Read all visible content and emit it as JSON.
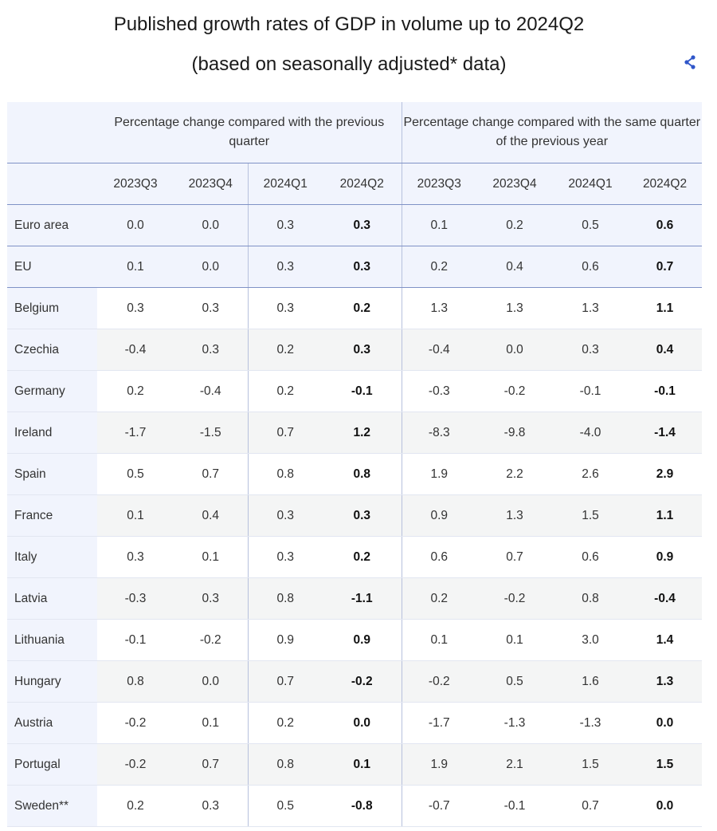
{
  "title_line1": "Published growth rates of GDP in volume up to 2024Q2",
  "title_line2": "(based on seasonally adjusted* data)",
  "share_icon": "share-icon",
  "colors": {
    "accent": "#2f56c9",
    "header_bg": "#f1f4fd",
    "alt_row_bg": "#f4f5f5",
    "rule": "#7f92c6"
  },
  "table": {
    "group_headers": [
      "Percentage change compared with the previous quarter",
      "Percentage change compared with the same quarter of the previous year"
    ],
    "columns": [
      "2023Q3",
      "2023Q4",
      "2024Q1",
      "2024Q2",
      "2023Q3",
      "2023Q4",
      "2024Q1",
      "2024Q2"
    ],
    "rows": [
      {
        "country": "Euro area",
        "values": [
          "0.0",
          "0.0",
          "0.3",
          "0.3",
          "0.1",
          "0.2",
          "0.5",
          "0.6"
        ]
      },
      {
        "country": "EU",
        "values": [
          "0.1",
          "0.0",
          "0.3",
          "0.3",
          "0.2",
          "0.4",
          "0.6",
          "0.7"
        ]
      },
      {
        "country": "Belgium",
        "values": [
          "0.3",
          "0.3",
          "0.3",
          "0.2",
          "1.3",
          "1.3",
          "1.3",
          "1.1"
        ]
      },
      {
        "country": "Czechia",
        "values": [
          "-0.4",
          "0.3",
          "0.2",
          "0.3",
          "-0.4",
          "0.0",
          "0.3",
          "0.4"
        ]
      },
      {
        "country": "Germany",
        "values": [
          "0.2",
          "-0.4",
          "0.2",
          "-0.1",
          "-0.3",
          "-0.2",
          "-0.1",
          "-0.1"
        ]
      },
      {
        "country": "Ireland",
        "values": [
          "-1.7",
          "-1.5",
          "0.7",
          "1.2",
          "-8.3",
          "-9.8",
          "-4.0",
          "-1.4"
        ]
      },
      {
        "country": "Spain",
        "values": [
          "0.5",
          "0.7",
          "0.8",
          "0.8",
          "1.9",
          "2.2",
          "2.6",
          "2.9"
        ]
      },
      {
        "country": "France",
        "values": [
          "0.1",
          "0.4",
          "0.3",
          "0.3",
          "0.9",
          "1.3",
          "1.5",
          "1.1"
        ]
      },
      {
        "country": "Italy",
        "values": [
          "0.3",
          "0.1",
          "0.3",
          "0.2",
          "0.6",
          "0.7",
          "0.6",
          "0.9"
        ]
      },
      {
        "country": "Latvia",
        "values": [
          "-0.3",
          "0.3",
          "0.8",
          "-1.1",
          "0.2",
          "-0.2",
          "0.8",
          "-0.4"
        ]
      },
      {
        "country": "Lithuania",
        "values": [
          "-0.1",
          "-0.2",
          "0.9",
          "0.9",
          "0.1",
          "0.1",
          "3.0",
          "1.4"
        ]
      },
      {
        "country": "Hungary",
        "values": [
          "0.8",
          "0.0",
          "0.7",
          "-0.2",
          "-0.2",
          "0.5",
          "1.6",
          "1.3"
        ]
      },
      {
        "country": "Austria",
        "values": [
          "-0.2",
          "0.1",
          "0.2",
          "0.0",
          "-1.7",
          "-1.3",
          "-1.3",
          "0.0"
        ]
      },
      {
        "country": "Portugal",
        "values": [
          "-0.2",
          "0.7",
          "0.8",
          "0.1",
          "1.9",
          "2.1",
          "1.5",
          "1.5"
        ]
      },
      {
        "country": "Sweden**",
        "values": [
          "0.2",
          "0.3",
          "0.5",
          "-0.8",
          "-0.7",
          "-0.1",
          "0.7",
          "0.0"
        ]
      }
    ]
  }
}
